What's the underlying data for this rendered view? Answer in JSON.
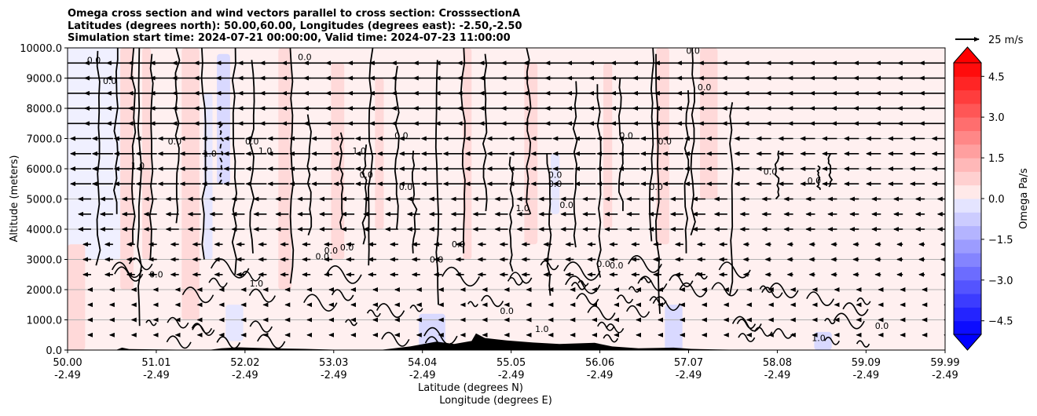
{
  "chart_data": {
    "type": "contour",
    "title_lines": [
      "Omega cross section and wind vectors parallel to cross section: CrosssectionA",
      "Latitudes (degrees north): 50.00,60.00, Longitudes (degrees east): -2.50,-2.50",
      "Simulation start time: 2024-07-21 00:00:00, Valid time: 2024-07-23 11:00:00"
    ],
    "ylabel": "Altitude (meters)",
    "xlabel": "Latitude (degrees N)",
    "xlabel2": "Longitude (degrees E)",
    "ylim": [
      0,
      10000
    ],
    "xlim": [
      50.0,
      59.99
    ],
    "y_ticks": [
      "0.0",
      "1000.0",
      "2000.0",
      "3000.0",
      "4000.0",
      "5000.0",
      "6000.0",
      "7000.0",
      "8000.0",
      "9000.0",
      "10000.0"
    ],
    "y_tick_values": [
      0,
      1000,
      2000,
      3000,
      4000,
      5000,
      6000,
      7000,
      8000,
      9000,
      10000
    ],
    "x_ticks": [
      {
        "lat": "50.00",
        "lon": "-2.49",
        "value": 50.0
      },
      {
        "lat": "51.01",
        "lon": "-2.49",
        "value": 51.01
      },
      {
        "lat": "52.02",
        "lon": "-2.49",
        "value": 52.02
      },
      {
        "lat": "53.03",
        "lon": "-2.49",
        "value": 53.03
      },
      {
        "lat": "54.04",
        "lon": "-2.49",
        "value": 54.04
      },
      {
        "lat": "55.05",
        "lon": "-2.49",
        "value": 55.05
      },
      {
        "lat": "56.06",
        "lon": "-2.49",
        "value": 56.06
      },
      {
        "lat": "57.07",
        "lon": "-2.49",
        "value": 57.07
      },
      {
        "lat": "58.08",
        "lon": "-2.49",
        "value": 58.08
      },
      {
        "lat": "59.09",
        "lon": "-2.49",
        "value": 59.09
      },
      {
        "lat": "59.99",
        "lon": "-2.49",
        "value": 59.99
      }
    ],
    "grid": "horizontal",
    "colorbar": {
      "label": "Omega Pa/s",
      "ticks": [
        "4.5",
        "3.0",
        "1.5",
        "0.0",
        "−1.5",
        "−3.0",
        "−4.5"
      ],
      "tick_values": [
        4.5,
        3.0,
        1.5,
        0.0,
        -1.5,
        -3.0,
        -4.5
      ],
      "range": [
        -5.0,
        5.0
      ],
      "extend": "both",
      "levels": 20,
      "negative_color": "#0000ff",
      "positive_color": "#ff0000"
    },
    "quiver_key": {
      "label": "25 m/s",
      "value": 25
    },
    "contour_levels": [
      "-1.0",
      "0.0",
      "1.0"
    ],
    "contour_labels": [
      {
        "text": "0.0",
        "x": 50.3,
        "y": 9500
      },
      {
        "text": "0.0",
        "x": 50.48,
        "y": 8800
      },
      {
        "text": "0.0",
        "x": 51.22,
        "y": 6800
      },
      {
        "text": "1.0",
        "x": 50.8,
        "y": 6000
      },
      {
        "text": "1.0",
        "x": 51.62,
        "y": 6400
      },
      {
        "text": "0.0",
        "x": 52.1,
        "y": 6800
      },
      {
        "text": "1.0",
        "x": 52.25,
        "y": 6500
      },
      {
        "text": "0.0",
        "x": 52.7,
        "y": 9600
      },
      {
        "text": "0.0",
        "x": 53.8,
        "y": 7000
      },
      {
        "text": "1.0",
        "x": 53.32,
        "y": 6500
      },
      {
        "text": "0.0",
        "x": 53.85,
        "y": 5300
      },
      {
        "text": "0.0",
        "x": 53.4,
        "y": 5700
      },
      {
        "text": "0.0",
        "x": 52.9,
        "y": 3000
      },
      {
        "text": "0.0",
        "x": 53.0,
        "y": 3200
      },
      {
        "text": "0.0",
        "x": 54.45,
        "y": 3400
      },
      {
        "text": "0.0",
        "x": 55.55,
        "y": 5700
      },
      {
        "text": "1.0",
        "x": 55.18,
        "y": 4600
      },
      {
        "text": "0.0",
        "x": 55.55,
        "y": 5400
      },
      {
        "text": "0.0",
        "x": 55.68,
        "y": 4700
      },
      {
        "text": "0.0",
        "x": 56.36,
        "y": 7000
      },
      {
        "text": "0.0",
        "x": 56.7,
        "y": 5300
      },
      {
        "text": "0.0",
        "x": 56.8,
        "y": 6800
      },
      {
        "text": "0.0",
        "x": 57.25,
        "y": 8600
      },
      {
        "text": "0.0",
        "x": 57.12,
        "y": 9800
      },
      {
        "text": "0.0",
        "x": 56.1,
        "y": 2750
      },
      {
        "text": "0.0",
        "x": 56.25,
        "y": 2700
      },
      {
        "text": "0.0",
        "x": 55.0,
        "y": 1200
      },
      {
        "text": "1.0",
        "x": 52.15,
        "y": 2100
      },
      {
        "text": "1.0",
        "x": 55.4,
        "y": 600
      },
      {
        "text": "0.0",
        "x": 58.0,
        "y": 5800
      },
      {
        "text": "0.0",
        "x": 58.5,
        "y": 5500
      },
      {
        "text": "0.0",
        "x": 59.27,
        "y": 700
      },
      {
        "text": "1.0",
        "x": 58.55,
        "y": 300
      },
      {
        "text": "0.0",
        "x": 51.01,
        "y": 2400
      },
      {
        "text": "0.0",
        "x": 54.2,
        "y": 2900
      },
      {
        "text": "0.0",
        "x": 53.18,
        "y": 3300
      }
    ]
  }
}
